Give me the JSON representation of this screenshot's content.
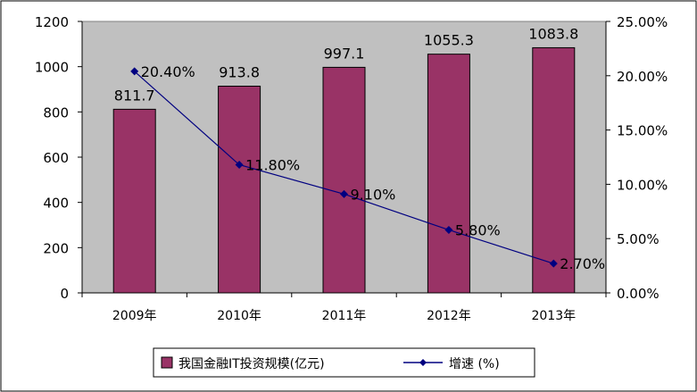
{
  "chart_data": {
    "type": "bar",
    "categories": [
      "2009年",
      "2010年",
      "2011年",
      "2012年",
      "2013年"
    ],
    "series": [
      {
        "name": "我国金融IT投资规模(亿元)",
        "type": "bar",
        "axis": "left",
        "values": [
          811.7,
          913.8,
          997.1,
          1055.3,
          1083.8
        ],
        "labels": [
          "811.7",
          "913.8",
          "997.1",
          "1055.3",
          "1083.8"
        ],
        "color": "#993366"
      },
      {
        "name": "增速 (%)",
        "type": "line",
        "axis": "right",
        "values": [
          20.4,
          11.8,
          9.1,
          5.8,
          2.7
        ],
        "labels": [
          "20.40%",
          "11.80%",
          "9.10%",
          "5.80%",
          "2.70%"
        ],
        "color": "#000080"
      }
    ],
    "y_left": {
      "min": 0,
      "max": 1200,
      "ticks": [
        "0",
        "200",
        "400",
        "600",
        "800",
        "1000",
        "1200"
      ]
    },
    "y_right": {
      "min": 0,
      "max": 25,
      "ticks": [
        "0.00%",
        "5.00%",
        "10.00%",
        "15.00%",
        "20.00%",
        "25.00%"
      ]
    },
    "plot_background": "#c0c0c0",
    "grid": false,
    "legend_position": "bottom"
  }
}
